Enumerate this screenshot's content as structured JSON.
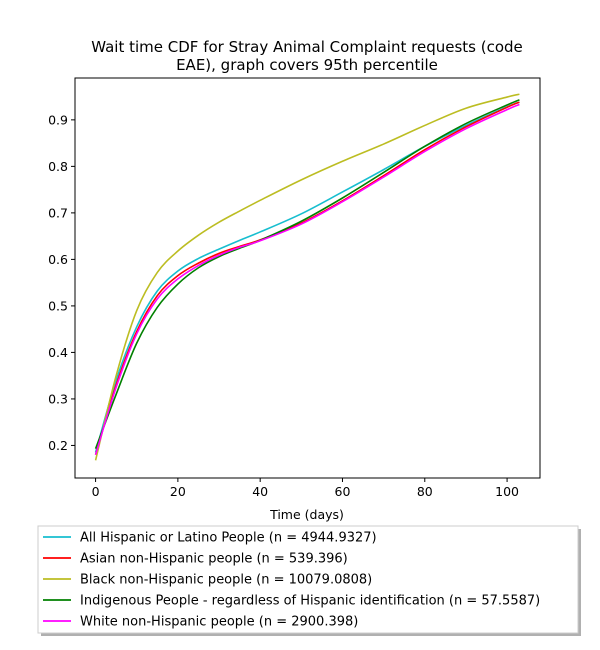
{
  "chart_data": {
    "type": "line",
    "title": "Wait time CDF for Stray Animal Complaint  requests (code EAE), graph covers 95th percentile",
    "title_lines": [
      "Wait time CDF for Stray Animal Complaint  requests (code",
      "EAE), graph covers 95th percentile"
    ],
    "xlabel": "Time (days)",
    "ylabel": "",
    "xlim": [
      -5,
      108
    ],
    "ylim": [
      0.13,
      0.99
    ],
    "xticks": [
      0,
      20,
      40,
      60,
      80,
      100
    ],
    "yticks": [
      0.2,
      0.3,
      0.4,
      0.5,
      0.6,
      0.7,
      0.8,
      0.9
    ],
    "grid": false,
    "legend_position": "below",
    "series": [
      {
        "name": "All Hispanic or Latino People (n = 4944.9327)",
        "color": "#17becf",
        "x": [
          0,
          5,
          10,
          15,
          20,
          25,
          30,
          35,
          40,
          50,
          60,
          70,
          80,
          90,
          100,
          103
        ],
        "y": [
          0.185,
          0.34,
          0.455,
          0.532,
          0.575,
          0.602,
          0.622,
          0.641,
          0.659,
          0.698,
          0.745,
          0.793,
          0.843,
          0.888,
          0.928,
          0.938
        ]
      },
      {
        "name": "Asian non-Hispanic people (n = 539.396)",
        "color": "#ff0000",
        "x": [
          0,
          5,
          10,
          15,
          20,
          25,
          30,
          35,
          40,
          50,
          60,
          70,
          80,
          90,
          100,
          103
        ],
        "y": [
          0.18,
          0.33,
          0.445,
          0.522,
          0.565,
          0.592,
          0.613,
          0.628,
          0.642,
          0.678,
          0.726,
          0.78,
          0.836,
          0.885,
          0.927,
          0.938
        ]
      },
      {
        "name": "Black non-Hispanic people (n = 10079.0808)",
        "color": "#bcbd22",
        "x": [
          0,
          5,
          10,
          15,
          20,
          25,
          30,
          35,
          40,
          50,
          60,
          70,
          80,
          90,
          100,
          103
        ],
        "y": [
          0.168,
          0.35,
          0.49,
          0.572,
          0.618,
          0.652,
          0.68,
          0.704,
          0.727,
          0.771,
          0.811,
          0.848,
          0.888,
          0.925,
          0.949,
          0.955
        ]
      },
      {
        "name": "Indigenous People - regardless of Hispanic identification (n = 57.5587)",
        "color": "#008000",
        "x": [
          0,
          5,
          10,
          15,
          20,
          25,
          30,
          35,
          40,
          50,
          60,
          70,
          80,
          90,
          100,
          103
        ],
        "y": [
          0.193,
          0.31,
          0.42,
          0.497,
          0.547,
          0.582,
          0.606,
          0.624,
          0.641,
          0.682,
          0.732,
          0.787,
          0.843,
          0.892,
          0.932,
          0.943
        ]
      },
      {
        "name": "White non-Hispanic people (n = 2900.398)",
        "color": "#ff00ff",
        "x": [
          0,
          5,
          10,
          15,
          20,
          25,
          30,
          35,
          40,
          50,
          60,
          70,
          80,
          90,
          100,
          103
        ],
        "y": [
          0.18,
          0.325,
          0.44,
          0.515,
          0.558,
          0.587,
          0.609,
          0.626,
          0.64,
          0.676,
          0.724,
          0.777,
          0.832,
          0.881,
          0.922,
          0.933
        ]
      }
    ]
  }
}
